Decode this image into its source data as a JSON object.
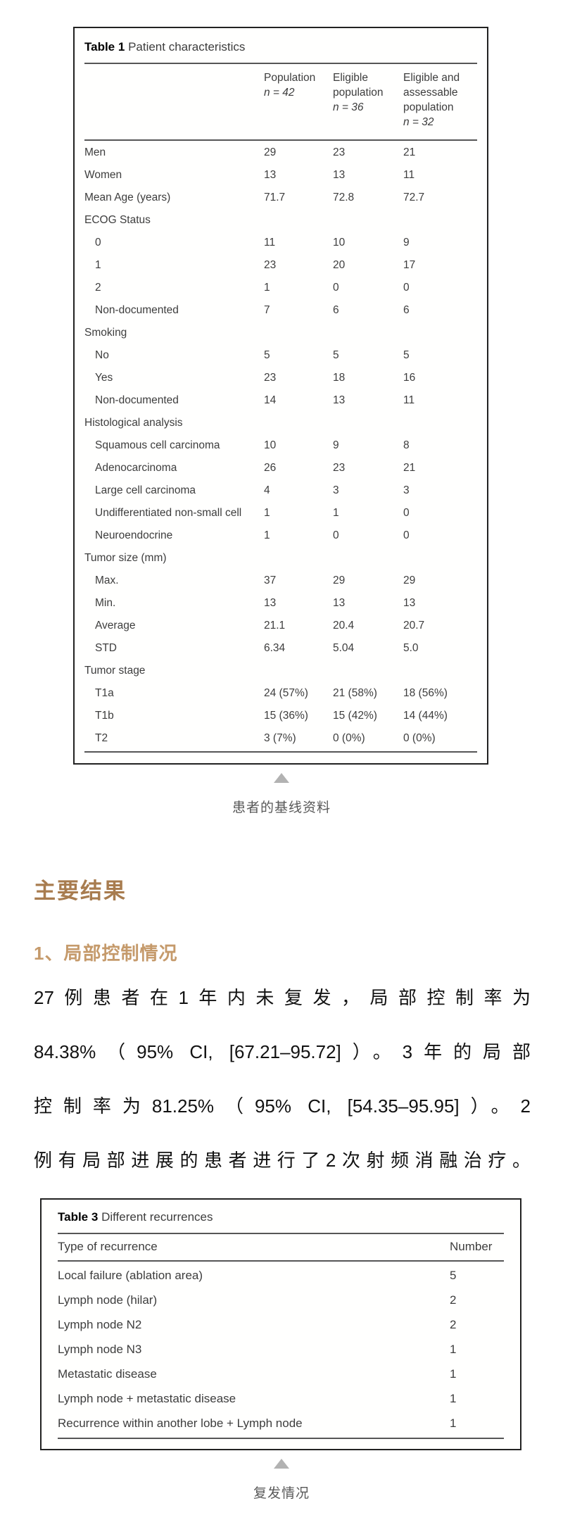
{
  "table1": {
    "title_bold": "Table 1",
    "title_rest": "Patient characteristics",
    "columns": [
      {
        "name": "Population",
        "n": "n = 42"
      },
      {
        "name": "Eligible population",
        "n": "n = 36"
      },
      {
        "name": "Eligible and assessable population",
        "n": "n = 32"
      }
    ],
    "rows": [
      {
        "label": "Men",
        "values": [
          "29",
          "23",
          "21"
        ]
      },
      {
        "label": "Women",
        "values": [
          "13",
          "13",
          "11"
        ]
      },
      {
        "label": "Mean Age (years)",
        "values": [
          "71.7",
          "72.8",
          "72.7"
        ]
      },
      {
        "label": "ECOG Status",
        "values": [
          "",
          "",
          ""
        ]
      },
      {
        "label": "0",
        "indent": true,
        "values": [
          "11",
          "10",
          "9"
        ]
      },
      {
        "label": "1",
        "indent": true,
        "values": [
          "23",
          "20",
          "17"
        ]
      },
      {
        "label": "2",
        "indent": true,
        "values": [
          "1",
          "0",
          "0"
        ]
      },
      {
        "label": "Non-documented",
        "indent": true,
        "values": [
          "7",
          "6",
          "6"
        ]
      },
      {
        "label": "Smoking",
        "values": [
          "",
          "",
          ""
        ]
      },
      {
        "label": "No",
        "indent": true,
        "values": [
          "5",
          "5",
          "5"
        ]
      },
      {
        "label": "Yes",
        "indent": true,
        "values": [
          "23",
          "18",
          "16"
        ]
      },
      {
        "label": "Non-documented",
        "indent": true,
        "values": [
          "14",
          "13",
          "11"
        ]
      },
      {
        "label": "Histological analysis",
        "values": [
          "",
          "",
          ""
        ]
      },
      {
        "label": "Squamous cell carcinoma",
        "indent": true,
        "values": [
          "10",
          "9",
          "8"
        ]
      },
      {
        "label": "Adenocarcinoma",
        "indent": true,
        "values": [
          "26",
          "23",
          "21"
        ]
      },
      {
        "label": "Large cell carcinoma",
        "indent": true,
        "values": [
          "4",
          "3",
          "3"
        ]
      },
      {
        "label": "Undifferentiated non-small cell",
        "indent": true,
        "values": [
          "1",
          "1",
          "0"
        ]
      },
      {
        "label": "Neuroendocrine",
        "indent": true,
        "values": [
          "1",
          "0",
          "0"
        ]
      },
      {
        "label": "Tumor size (mm)",
        "values": [
          "",
          "",
          ""
        ]
      },
      {
        "label": "Max.",
        "indent": true,
        "values": [
          "37",
          "29",
          "29"
        ]
      },
      {
        "label": "Min.",
        "indent": true,
        "values": [
          "13",
          "13",
          "13"
        ]
      },
      {
        "label": "Average",
        "indent": true,
        "values": [
          "21.1",
          "20.4",
          "20.7"
        ]
      },
      {
        "label": "STD",
        "indent": true,
        "values": [
          "6.34",
          "5.04",
          "5.0"
        ]
      },
      {
        "label": "Tumor stage",
        "values": [
          "",
          "",
          ""
        ]
      },
      {
        "label": "T1a",
        "indent": true,
        "values": [
          "24 (57%)",
          "21 (58%)",
          "18 (56%)"
        ]
      },
      {
        "label": "T1b",
        "indent": true,
        "values": [
          "15 (36%)",
          "15 (42%)",
          "14 (44%)"
        ]
      },
      {
        "label": "T2",
        "indent": true,
        "values": [
          "3 (7%)",
          "0 (0%)",
          "0 (0%)"
        ]
      }
    ],
    "caption": "患者的基线资料"
  },
  "section": {
    "heading": "主要结果",
    "subheading": "1、局部控制情况",
    "paragraph_lines": [
      {
        "text": "27例患者在1年内未复发，局部控制率为"
      },
      {
        "text": "84.38%（95% CI, [67.21–95.72]）。3年的局部"
      },
      {
        "text": "控制率为81.25%（95% CI, [54.35–95.95]）。2"
      },
      {
        "text": "例有局部进展的患者进行了2次射频消融治疗。"
      }
    ]
  },
  "table3": {
    "title_bold": "Table 3",
    "title_rest": "Different recurrences",
    "col_type": "Type of recurrence",
    "col_number": "Number",
    "rows": [
      {
        "label": "Local failure (ablation area)",
        "value": "5"
      },
      {
        "label": "Lymph node (hilar)",
        "value": "2"
      },
      {
        "label": "Lymph node N2",
        "value": "2"
      },
      {
        "label": "Lymph node N3",
        "value": "1"
      },
      {
        "label": "Metastatic disease",
        "value": "1"
      },
      {
        "label": "Lymph node + metastatic disease",
        "value": "1"
      },
      {
        "label": "Recurrence within another lobe + Lymph node",
        "value": "1"
      }
    ],
    "caption": "复发情况"
  },
  "colors": {
    "heading_brown": "#a87c4f",
    "subheading_tan": "#c59a6b",
    "caption_gray": "#595959",
    "triangle_gray": "#b2b2b2",
    "table_text": "#3d3d3d"
  }
}
